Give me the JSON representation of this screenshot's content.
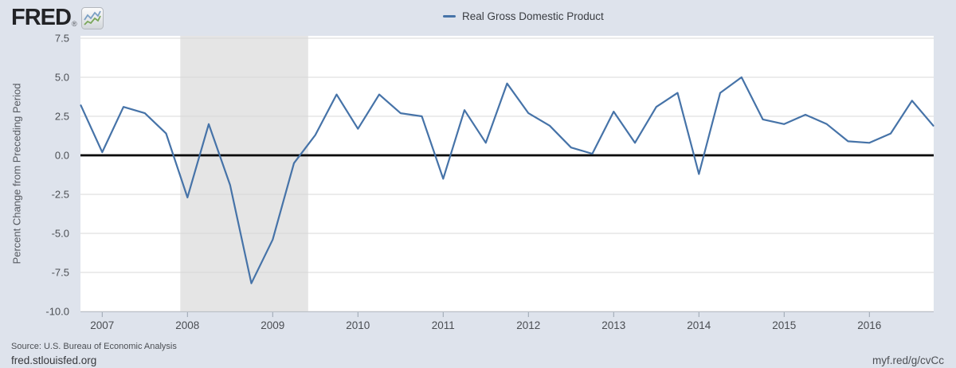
{
  "header": {
    "logo": {
      "text": "FRED",
      "registered": "®"
    }
  },
  "source": {
    "text": "Source: U.S. Bureau of Economic Analysis"
  },
  "footer": {
    "left": "fred.stlouisfed.org",
    "right": "myf.red/g/cvCc"
  },
  "chart_data": {
    "type": "line",
    "title": "Real Gross Domestic Product",
    "ylabel": "Percent Change from Preceding Period",
    "frequency": "Quarterly",
    "periods": [
      "2006 Q4",
      "2007 Q1",
      "2007 Q2",
      "2007 Q3",
      "2007 Q4",
      "2008 Q1",
      "2008 Q2",
      "2008 Q3",
      "2008 Q4",
      "2009 Q1",
      "2009 Q2",
      "2009 Q3",
      "2009 Q4",
      "2010 Q1",
      "2010 Q2",
      "2010 Q3",
      "2010 Q4",
      "2011 Q1",
      "2011 Q2",
      "2011 Q3",
      "2011 Q4",
      "2012 Q1",
      "2012 Q2",
      "2012 Q3",
      "2012 Q4",
      "2013 Q1",
      "2013 Q2",
      "2013 Q3",
      "2013 Q4",
      "2014 Q1",
      "2014 Q2",
      "2014 Q3",
      "2014 Q4",
      "2015 Q1",
      "2015 Q2",
      "2015 Q3",
      "2015 Q4",
      "2016 Q1",
      "2016 Q2",
      "2016 Q3",
      "2016 Q4"
    ],
    "values": [
      3.2,
      0.2,
      3.1,
      2.7,
      1.4,
      -2.7,
      2.0,
      -1.9,
      -8.2,
      -5.4,
      -0.5,
      1.3,
      3.9,
      1.7,
      3.9,
      2.7,
      2.5,
      -1.5,
      2.9,
      0.8,
      4.6,
      2.7,
      1.9,
      0.5,
      0.1,
      2.8,
      0.8,
      3.1,
      4.0,
      -1.2,
      4.0,
      5.0,
      2.3,
      2.0,
      2.6,
      2.0,
      0.9,
      0.8,
      1.4,
      3.5,
      1.9
    ],
    "ylim": [
      -10.0,
      7.5
    ],
    "y_ticks": [
      7.5,
      5.0,
      2.5,
      0.0,
      -2.5,
      -5.0,
      -7.5,
      -10.0
    ],
    "x_tick_years": [
      2007,
      2008,
      2009,
      2010,
      2011,
      2012,
      2013,
      2014,
      2015,
      2016
    ],
    "zero_line": true,
    "grid": "horizontal",
    "legend_position": "top-center",
    "recession": {
      "start": "2007-12",
      "end": "2009-06",
      "color": "#e5e5e5"
    },
    "line_color": "#4673a8",
    "plot_bg": "#ffffff",
    "outer_bg": "#dee3ec",
    "gridline_color": "#d8d8d8"
  }
}
